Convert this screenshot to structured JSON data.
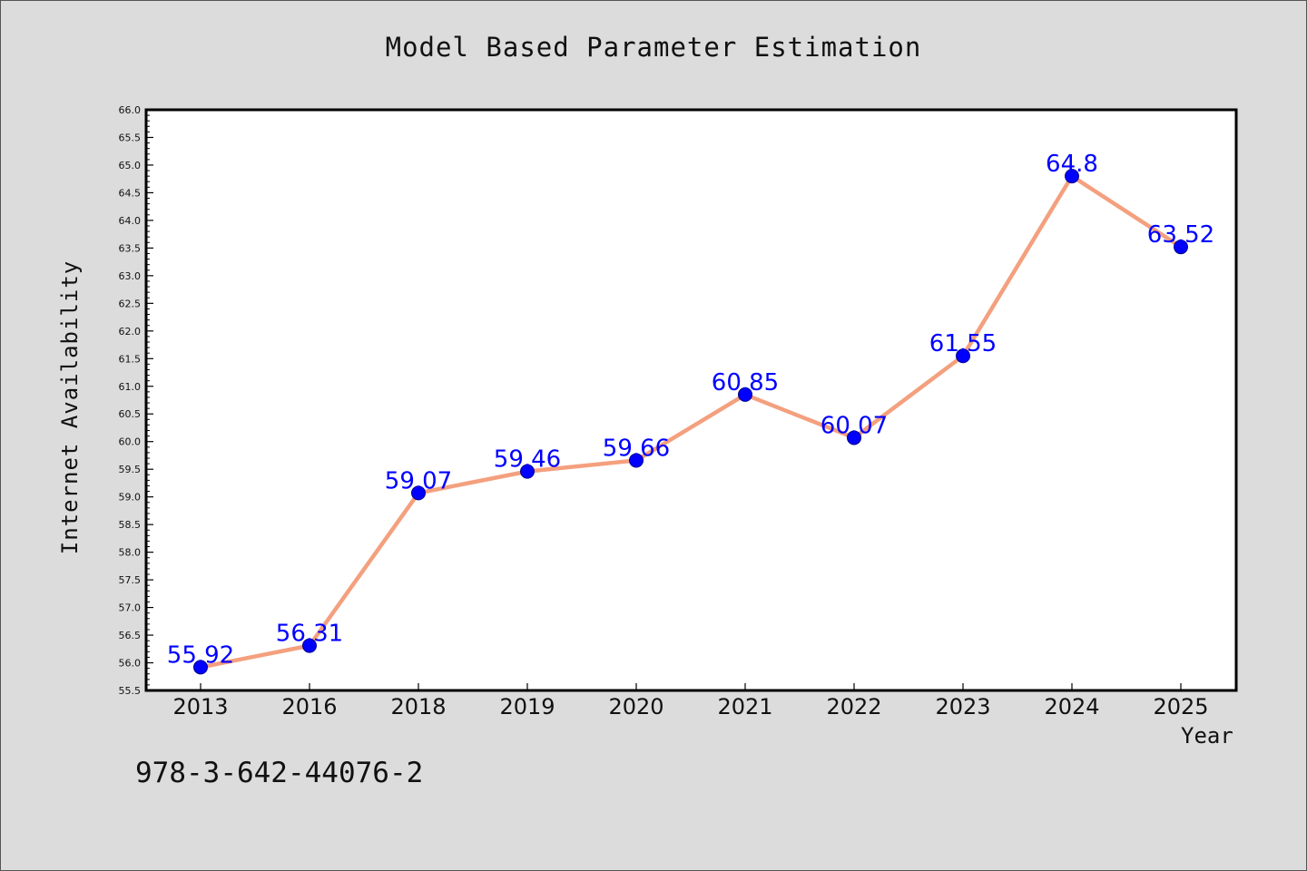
{
  "chart_data": {
    "type": "line",
    "title": "Model Based Parameter Estimation",
    "xlabel": "Year",
    "ylabel": "Internet Availability",
    "categories": [
      "2013",
      "2016",
      "2018",
      "2019",
      "2020",
      "2021",
      "2022",
      "2023",
      "2024",
      "2025"
    ],
    "values": [
      55.92,
      56.31,
      59.07,
      59.46,
      59.66,
      60.85,
      60.07,
      61.55,
      64.8,
      63.52
    ],
    "data_labels": [
      "55.92",
      "56.31",
      "59.07",
      "59.46",
      "59.66",
      "60.85",
      "60.07",
      "61.55",
      "64.8",
      "63.52"
    ],
    "ylim": [
      55.5,
      66.0
    ],
    "yticks": [
      "55.5",
      "56.0",
      "56.5",
      "57.0",
      "57.5",
      "58.0",
      "58.5",
      "59.0",
      "59.5",
      "60.0",
      "60.5",
      "61.0",
      "61.5",
      "62.0",
      "62.5",
      "63.0",
      "63.5",
      "64.0",
      "64.5",
      "65.0",
      "65.5",
      "66.0"
    ],
    "grid": false,
    "legend": "none",
    "colors": {
      "line": "#f4a07e",
      "marker": "#0000ff",
      "data_label": "#0000ff",
      "background": "#dcdcdc",
      "plot_area": "#ffffff"
    }
  },
  "footer": {
    "code": "978-3-642-44076-2"
  }
}
